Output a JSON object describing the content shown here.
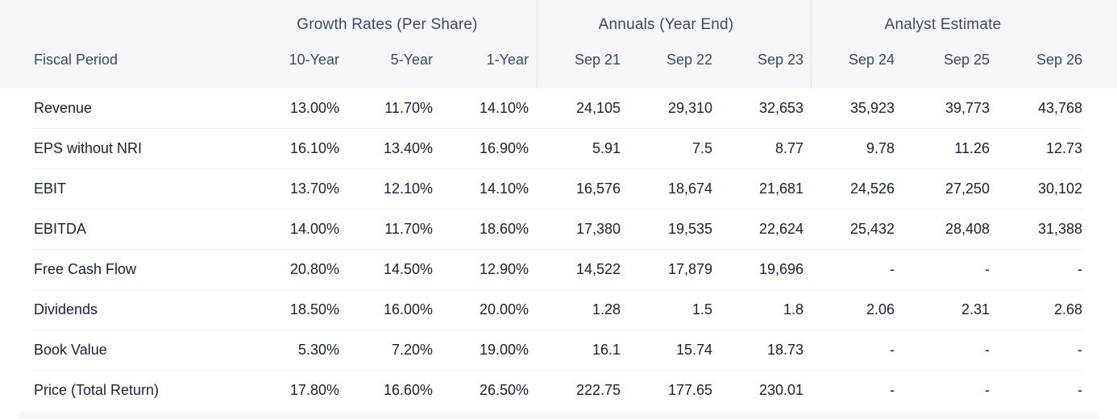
{
  "chart_data": {
    "type": "table",
    "label_column_header": "Fiscal Period",
    "column_groups": [
      {
        "label": "Growth Rates (Per Share)",
        "span": 3
      },
      {
        "label": "Annuals (Year End)",
        "span": 3
      },
      {
        "label": "Analyst Estimate",
        "span": 3
      }
    ],
    "columns": [
      "10-Year",
      "5-Year",
      "1-Year",
      "Sep 21",
      "Sep 22",
      "Sep 23",
      "Sep 24",
      "Sep 25",
      "Sep 26"
    ],
    "rows": [
      {
        "label": "Revenue",
        "values": [
          "13.00%",
          "11.70%",
          "14.10%",
          "24,105",
          "29,310",
          "32,653",
          "35,923",
          "39,773",
          "43,768"
        ]
      },
      {
        "label": "EPS without NRI",
        "values": [
          "16.10%",
          "13.40%",
          "16.90%",
          "5.91",
          "7.5",
          "8.77",
          "9.78",
          "11.26",
          "12.73"
        ]
      },
      {
        "label": "EBIT",
        "values": [
          "13.70%",
          "12.10%",
          "14.10%",
          "16,576",
          "18,674",
          "21,681",
          "24,526",
          "27,250",
          "30,102"
        ]
      },
      {
        "label": "EBITDA",
        "values": [
          "14.00%",
          "11.70%",
          "18.60%",
          "17,380",
          "19,535",
          "22,624",
          "25,432",
          "28,408",
          "31,388"
        ]
      },
      {
        "label": "Free Cash Flow",
        "values": [
          "20.80%",
          "14.50%",
          "12.90%",
          "14,522",
          "17,879",
          "19,696",
          "-",
          "-",
          "-"
        ]
      },
      {
        "label": "Dividends",
        "values": [
          "18.50%",
          "16.00%",
          "20.00%",
          "1.28",
          "1.5",
          "1.8",
          "2.06",
          "2.31",
          "2.68"
        ]
      },
      {
        "label": "Book Value",
        "values": [
          "5.30%",
          "7.20%",
          "19.00%",
          "16.1",
          "15.74",
          "18.73",
          "-",
          "-",
          "-"
        ]
      },
      {
        "label": "Price (Total Return)",
        "values": [
          "17.80%",
          "16.60%",
          "26.50%",
          "222.75",
          "177.65",
          "230.01",
          "-",
          "-",
          "-"
        ]
      }
    ]
  },
  "colors": {
    "header_bg": "#f6f7f8",
    "header_text": "#3e4961",
    "data_text": "#1a2137",
    "row_divider": "#edeef1",
    "group_divider": "#e4e6e9",
    "page_bg": "#ffffff"
  }
}
